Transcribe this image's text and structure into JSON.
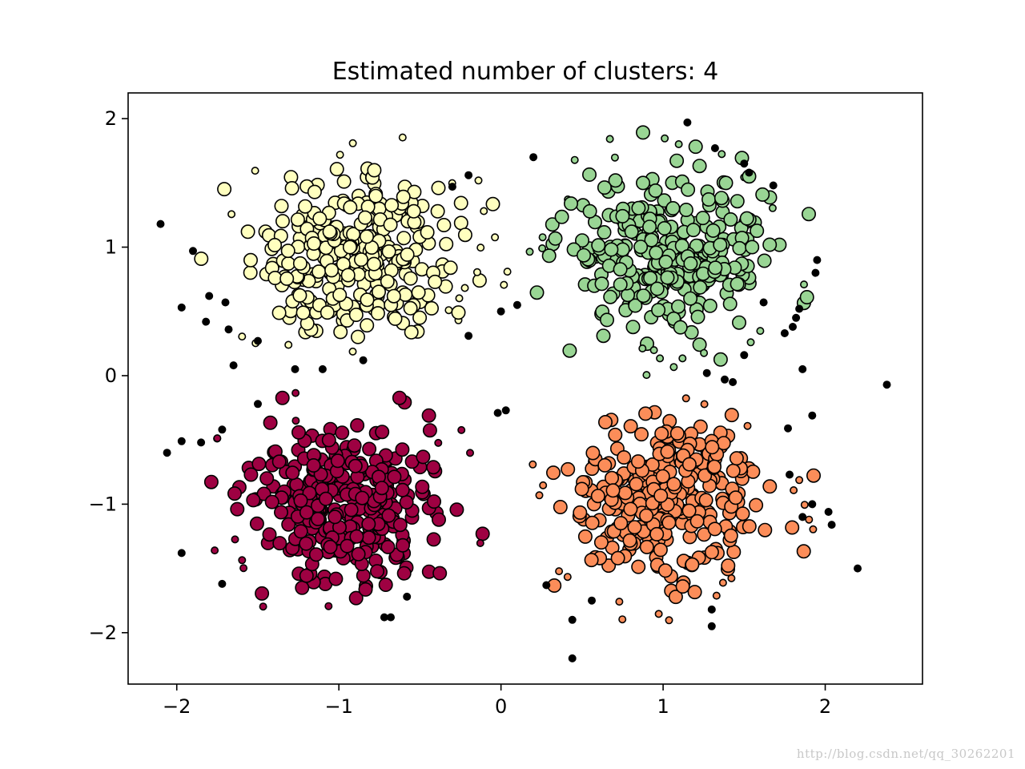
{
  "watermark": "http://blog.csdn.net/qq_30262201",
  "chart_data": {
    "type": "scatter",
    "title": "Estimated number of clusters: 4",
    "xlabel": "",
    "ylabel": "",
    "xlim": [
      -2.3,
      2.6
    ],
    "ylim": [
      -2.4,
      2.2
    ],
    "xticks": [
      -2,
      -1,
      0,
      1,
      2
    ],
    "yticks": [
      -2,
      -1,
      0,
      1,
      2
    ],
    "xtick_labels": [
      "−2",
      "−1",
      "0",
      "1",
      "2"
    ],
    "ytick_labels": [
      "−2",
      "−1",
      "0",
      "1",
      "2"
    ],
    "grid": false,
    "legend": "none",
    "clusters": [
      {
        "label": 0,
        "color": "#FFFFBF",
        "center": [
          -0.9,
          0.95
        ],
        "spread": [
          0.32,
          0.33
        ],
        "count": 310
      },
      {
        "label": 1,
        "color": "#99D594",
        "center": [
          1.0,
          0.95
        ],
        "spread": [
          0.32,
          0.33
        ],
        "count": 320
      },
      {
        "label": 2,
        "color": "#9E0142",
        "center": [
          -0.95,
          -1.0
        ],
        "spread": [
          0.32,
          0.33
        ],
        "count": 320
      },
      {
        "label": 3,
        "color": "#FC8D59",
        "center": [
          1.0,
          -0.98
        ],
        "spread": [
          0.32,
          0.33
        ],
        "count": 310
      }
    ],
    "noise_points": [
      [
        -2.1,
        1.18
      ],
      [
        -1.9,
        0.97
      ],
      [
        -1.97,
        0.53
      ],
      [
        -1.8,
        0.62
      ],
      [
        -1.82,
        0.42
      ],
      [
        -1.7,
        0.57
      ],
      [
        -1.68,
        0.36
      ],
      [
        -1.65,
        0.08
      ],
      [
        -1.5,
        0.27
      ],
      [
        -1.27,
        0.05
      ],
      [
        -1.1,
        0.05
      ],
      [
        -0.85,
        0.12
      ],
      [
        -0.2,
        1.56
      ],
      [
        -0.2,
        0.31
      ],
      [
        -0.3,
        1.47
      ],
      [
        0.0,
        0.5
      ],
      [
        0.1,
        0.55
      ],
      [
        0.2,
        1.7
      ],
      [
        1.15,
        1.97
      ],
      [
        1.32,
        1.77
      ],
      [
        1.5,
        1.65
      ],
      [
        1.53,
        1.58
      ],
      [
        1.68,
        1.48
      ],
      [
        1.84,
        0.52
      ],
      [
        1.82,
        0.45
      ],
      [
        1.8,
        0.38
      ],
      [
        1.75,
        0.33
      ],
      [
        1.95,
        0.9
      ],
      [
        1.94,
        0.8
      ],
      [
        1.62,
        0.57
      ],
      [
        1.5,
        0.16
      ],
      [
        1.86,
        0.05
      ],
      [
        1.27,
        0.02
      ],
      [
        1.38,
        -0.03
      ],
      [
        1.43,
        -0.05
      ],
      [
        2.38,
        -0.07
      ],
      [
        1.77,
        -0.41
      ],
      [
        1.92,
        -0.31
      ],
      [
        1.78,
        -0.77
      ],
      [
        1.86,
        -1.1
      ],
      [
        1.92,
        -1.0
      ],
      [
        2.02,
        -1.06
      ],
      [
        2.04,
        -1.16
      ],
      [
        2.2,
        -1.5
      ],
      [
        1.3,
        -1.82
      ],
      [
        1.3,
        -1.95
      ],
      [
        0.44,
        -1.9
      ],
      [
        0.44,
        -2.2
      ],
      [
        0.56,
        -1.75
      ],
      [
        0.28,
        -1.63
      ],
      [
        -0.72,
        -1.88
      ],
      [
        -0.68,
        -1.88
      ],
      [
        -1.72,
        -1.62
      ],
      [
        -1.97,
        -1.38
      ],
      [
        -2.06,
        -0.6
      ],
      [
        -1.97,
        -0.51
      ],
      [
        -1.85,
        -0.52
      ],
      [
        -1.72,
        -0.42
      ],
      [
        -1.5,
        -0.22
      ],
      [
        -0.58,
        -1.72
      ],
      [
        -0.02,
        -0.29
      ],
      [
        0.03,
        -0.27
      ]
    ]
  }
}
